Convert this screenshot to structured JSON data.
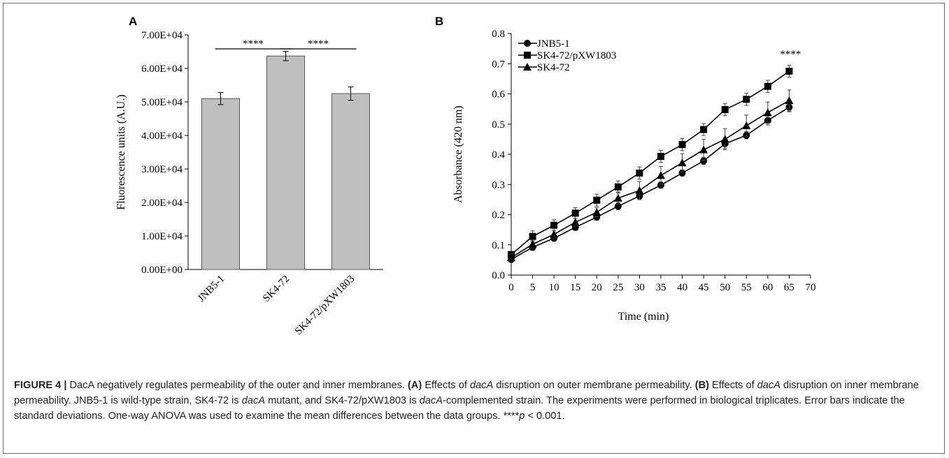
{
  "panel_labels": [
    "A",
    "B"
  ],
  "chart_data": [
    {
      "panel": "A",
      "type": "bar",
      "title": "",
      "xlabel": "",
      "ylabel": "Fluorescence units (A.U.)",
      "ylim": [
        0,
        70000
      ],
      "yticks": [
        "0.00E+00",
        "1.00E+04",
        "2.00E+04",
        "3.00E+04",
        "4.00E+04",
        "5.00E+04",
        "6.00E+04",
        "7.00E+04"
      ],
      "categories": [
        "JNB5-1",
        "SK4-72",
        "SK4-72/pXW1803"
      ],
      "values": [
        51000,
        63700,
        52500
      ],
      "errors": [
        1800,
        1400,
        2000
      ],
      "bar_color": "#bfbfbf",
      "significance": [
        {
          "between": [
            0,
            1
          ],
          "label": "****"
        },
        {
          "between": [
            1,
            2
          ],
          "label": "****"
        }
      ]
    },
    {
      "panel": "B",
      "type": "line",
      "title": "",
      "xlabel": "Time (min)",
      "ylabel": "Absorbance (420 nm)",
      "xlim": [
        0,
        70
      ],
      "ylim": [
        0,
        0.8
      ],
      "xticks": [
        "0",
        "5",
        "10",
        "15",
        "20",
        "25",
        "30",
        "35",
        "40",
        "45",
        "50",
        "55",
        "60",
        "65",
        "70"
      ],
      "yticks": [
        "0.0",
        "0.1",
        "0.2",
        "0.3",
        "0.4",
        "0.5",
        "0.6",
        "0.7",
        "0.8"
      ],
      "x": [
        0,
        5,
        10,
        15,
        20,
        25,
        30,
        35,
        40,
        45,
        50,
        55,
        60,
        65
      ],
      "legend_position": "top-left",
      "series": [
        {
          "name": "JNB5-1",
          "marker": "circle",
          "values": [
            0.052,
            0.092,
            0.122,
            0.158,
            0.192,
            0.228,
            0.262,
            0.298,
            0.338,
            0.378,
            0.435,
            0.463,
            0.512,
            0.556
          ],
          "errors": [
            0.01,
            0.01,
            0.01,
            0.01,
            0.01,
            0.012,
            0.012,
            0.01,
            0.01,
            0.012,
            0.015,
            0.012,
            0.015,
            0.015
          ]
        },
        {
          "name": "SK4-72/pXW1803",
          "marker": "square",
          "values": [
            0.068,
            0.128,
            0.165,
            0.205,
            0.248,
            0.292,
            0.338,
            0.393,
            0.432,
            0.482,
            0.548,
            0.582,
            0.625,
            0.675
          ],
          "errors": [
            0.01,
            0.018,
            0.018,
            0.018,
            0.02,
            0.02,
            0.02,
            0.02,
            0.02,
            0.02,
            0.02,
            0.02,
            0.02,
            0.02
          ]
        },
        {
          "name": "SK4-72",
          "marker": "triangle",
          "values": [
            0.058,
            0.102,
            0.135,
            0.175,
            0.208,
            0.255,
            0.28,
            0.33,
            0.372,
            0.415,
            0.45,
            0.495,
            0.538,
            0.578
          ],
          "errors": [
            0.01,
            0.012,
            0.012,
            0.012,
            0.015,
            0.02,
            0.03,
            0.03,
            0.03,
            0.035,
            0.035,
            0.035,
            0.035,
            0.035
          ]
        }
      ],
      "annotation": {
        "x": 65,
        "label": "****"
      }
    }
  ],
  "caption": {
    "label": "FIGURE 4 |",
    "text": [
      {
        "t": " DacA negatively regulates permeability of the outer and inner membranes. "
      },
      {
        "t": "(A)",
        "b": true
      },
      {
        "t": " Effects of "
      },
      {
        "t": "dacA",
        "i": true
      },
      {
        "t": " disruption on outer membrane permeability. "
      },
      {
        "t": "(B)",
        "b": true
      },
      {
        "t": " Effects of "
      },
      {
        "t": "dacA",
        "i": true
      },
      {
        "t": " disruption on inner membrane permeability. JNB5-1 is wild-type strain, SK4-72 is "
      },
      {
        "t": "dacA",
        "i": true
      },
      {
        "t": " mutant, and SK4-72/pXW1803 is "
      },
      {
        "t": "dacA",
        "i": true
      },
      {
        "t": "-complemented strain. The experiments were performed in biological triplicates. Error bars indicate the standard deviations. One-way ANOVA was used to examine the mean differences between the data groups. ****"
      },
      {
        "t": "p",
        "i": true
      },
      {
        "t": " < 0.001."
      }
    ]
  }
}
